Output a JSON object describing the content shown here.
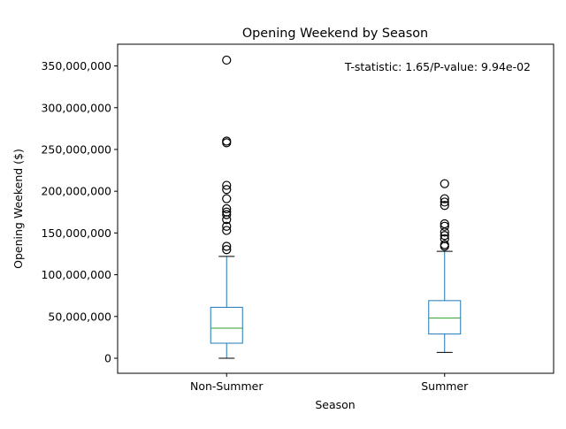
{
  "chart_data": {
    "type": "box",
    "title": "Opening Weekend by Season",
    "xlabel": "Season",
    "ylabel": "Opening Weekend ($)",
    "annotation": "T-statistic: 1.65/P-value: 9.94e-02",
    "ylim": [
      -18000000,
      376000000
    ],
    "yticks": [
      0,
      50000000,
      100000000,
      150000000,
      200000000,
      250000000,
      300000000,
      350000000
    ],
    "ytick_labels": [
      "0",
      "50,000,000",
      "100,000,000",
      "150,000,000",
      "200,000,000",
      "250,000,000",
      "300,000,000",
      "350,000,000"
    ],
    "grid": false,
    "categories": [
      "Non-Summer",
      "Summer"
    ],
    "boxes": [
      {
        "category": "Non-Summer",
        "whisker_low": 0,
        "q1": 18000000,
        "median": 36000000,
        "q3": 61000000,
        "whisker_high": 122000000,
        "outliers": [
          130000000,
          134000000,
          153000000,
          158000000,
          166000000,
          172000000,
          175000000,
          179000000,
          191000000,
          202000000,
          207000000,
          258000000,
          260000000,
          357000000
        ]
      },
      {
        "category": "Summer",
        "whisker_low": 7000000,
        "q1": 29000000,
        "median": 48000000,
        "q3": 69000000,
        "whisker_high": 128000000,
        "outliers": [
          134000000,
          136000000,
          143000000,
          147000000,
          151000000,
          158000000,
          161000000,
          183000000,
          187000000,
          191000000,
          209000000
        ]
      }
    ],
    "colors": {
      "box": "#1f77b4",
      "median": "#2ca02c",
      "whisker": "#1f77b4",
      "cap": "#000000",
      "outlier": "#000000",
      "axis": "#000000"
    }
  }
}
